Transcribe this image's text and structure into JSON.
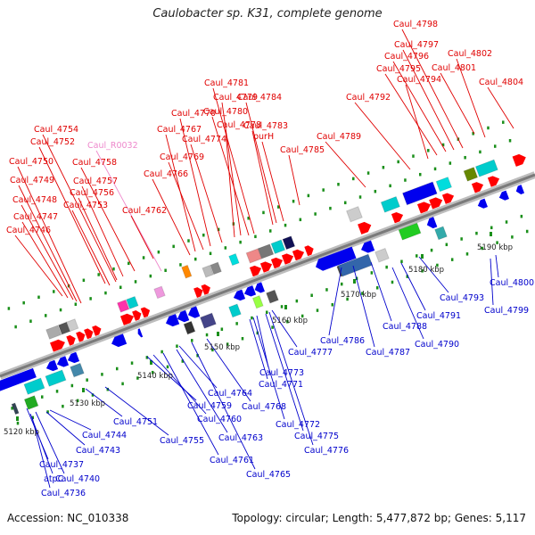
{
  "title": "Caulobacter sp. K31, complete genome",
  "accession_text": "Accession: NC_010338",
  "summary_text": "Topology: circular; Length: 5,477,872 bp; Genes: 5,117",
  "colors": {
    "forward_gene": "#ff0000",
    "reverse_gene": "#0000ff",
    "forward_label": "#e00000",
    "reverse_label": "#0000cc",
    "rna_label": "#ee88cc",
    "tick": "#1a8f1a",
    "axis": "#999999"
  },
  "ticks": [
    {
      "label": "5120 kbp"
    },
    {
      "label": "5130 kbp"
    },
    {
      "label": "5140 kbp"
    },
    {
      "label": "5150 kbp"
    },
    {
      "label": "5160 kbp"
    },
    {
      "label": "5170 kbp"
    },
    {
      "label": "5180 kbp"
    },
    {
      "label": "5190 kbp"
    }
  ],
  "forward_labels": [
    "Caul_4746",
    "Caul_4747",
    "Caul_4748",
    "Caul_4749",
    "Caul_4750",
    "Caul_4752",
    "Caul_4753",
    "Caul_4754",
    "Caul_4756",
    "Caul_4757",
    "Caul_4758",
    "Caul_R0032",
    "Caul_4762",
    "Caul_4766",
    "Caul_4767",
    "Caul_4769",
    "Caul_4770",
    "Caul_4774",
    "Caul_4778",
    "Caul_4779",
    "Caul_4780",
    "Caul_4781",
    "Caul_4783",
    "Caul_4784",
    "purH",
    "Caul_4785",
    "Caul_4789",
    "Caul_4792",
    "Caul_4794",
    "Caul_4795",
    "Caul_4796",
    "Caul_4797",
    "Caul_4798",
    "Caul_4801",
    "Caul_4802",
    "Caul_4804"
  ],
  "reverse_labels": [
    "Caul_4736",
    "atpC",
    "Caul_4737",
    "Caul_4740",
    "Caul_4743",
    "Caul_4744",
    "Caul_4751",
    "Caul_4755",
    "Caul_4759",
    "Caul_4760",
    "Caul_4761",
    "Caul_4763",
    "Caul_4764",
    "Caul_4765",
    "Caul_4768",
    "Caul_4771",
    "Caul_4772",
    "Caul_4773",
    "Caul_4775",
    "Caul_4776",
    "Caul_4777",
    "Caul_4786",
    "Caul_4787",
    "Caul_4788",
    "Caul_4790",
    "Caul_4791",
    "Caul_4793",
    "Caul_4799",
    "Caul_4800"
  ]
}
